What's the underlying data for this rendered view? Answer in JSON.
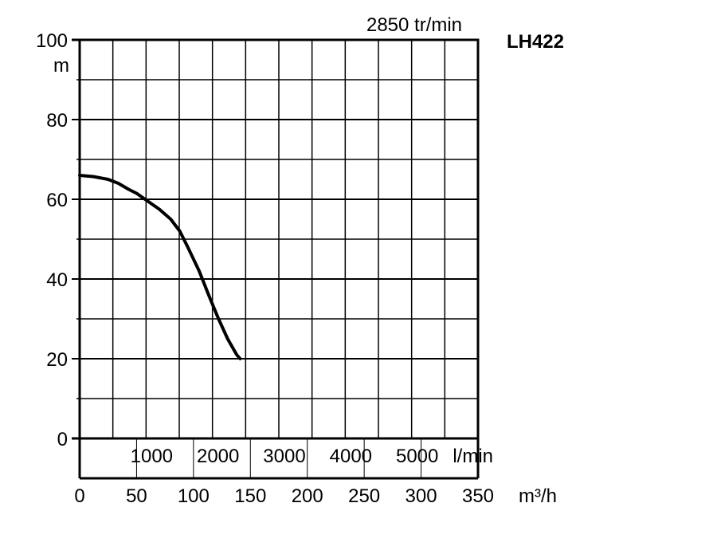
{
  "chart_data": {
    "type": "line",
    "title": "LH422",
    "speed_label": "2850 tr/min",
    "y_unit": "m",
    "lpm_unit": "l/min",
    "m3h_unit": "m³/h",
    "y_ticks": [
      "0",
      "20",
      "40",
      "60",
      "80",
      "100"
    ],
    "lpm_ticks": [
      "1000",
      "2000",
      "3000",
      "4000",
      "5000"
    ],
    "m3h_ticks": [
      "0",
      "50",
      "100",
      "150",
      "200",
      "250",
      "300",
      "350"
    ],
    "xlim": [
      0,
      350
    ],
    "ylim": [
      0,
      100
    ],
    "lpm_lim": [
      0,
      6000
    ],
    "grid": true,
    "series": [
      {
        "x": [
          0,
          12,
          25,
          34,
          43,
          50,
          60,
          70,
          80,
          88,
          95,
          105,
          114,
          122,
          130,
          138,
          141
        ],
        "y": [
          66,
          65.7,
          65,
          64,
          62.5,
          61.5,
          59.5,
          57.5,
          55,
          52,
          48,
          42,
          35.5,
          30,
          25,
          21,
          20
        ]
      }
    ],
    "line_color": "#000000"
  }
}
